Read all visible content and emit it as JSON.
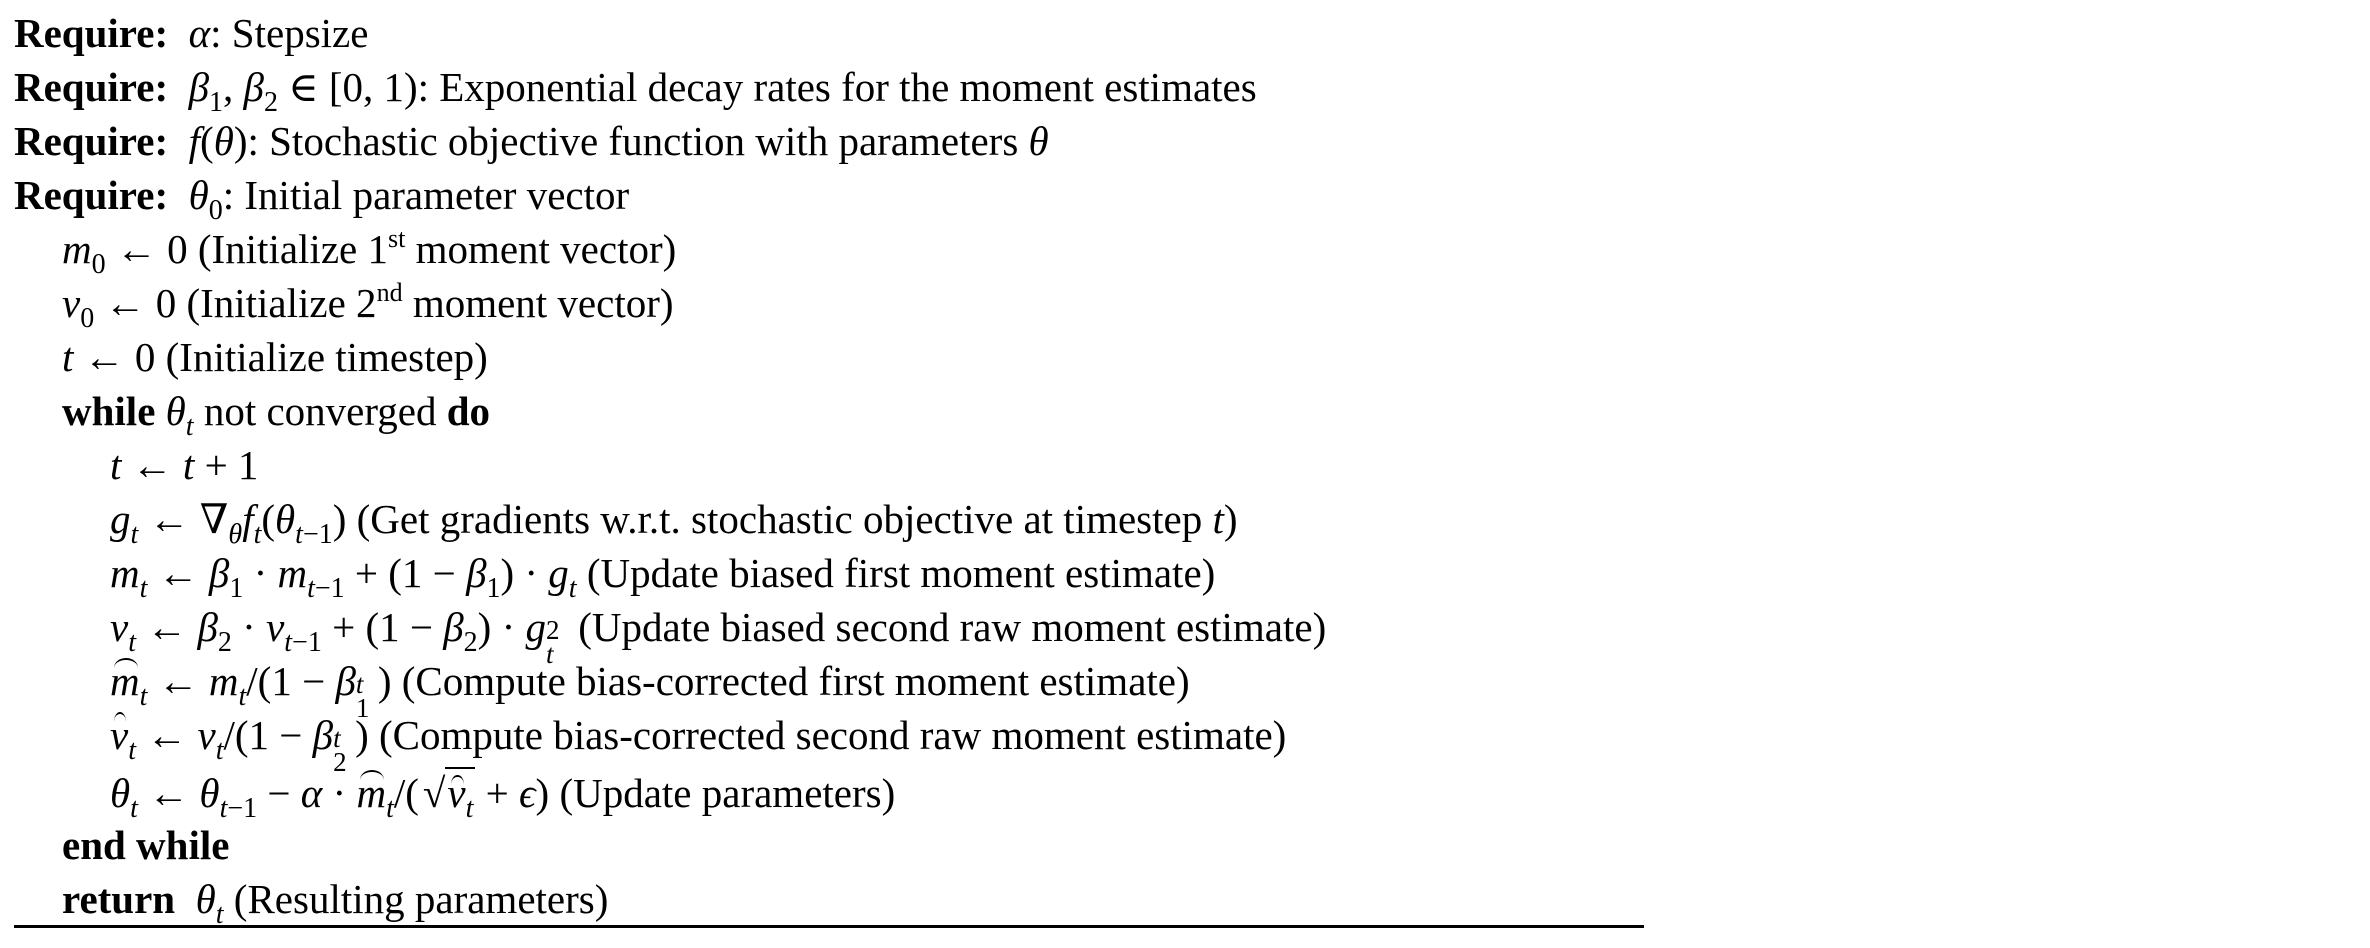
{
  "algorithm": {
    "require_keyword": "Require:",
    "while_keyword": "while",
    "do_keyword": "do",
    "end_while": "end while",
    "return_keyword": "return",
    "lines": {
      "r1": ": Stepsize",
      "r2": ": Exponential decay rates for the moment estimates",
      "r3": ": Stochastic objective function with parameters",
      "r4": ": Initial parameter vector",
      "l1": "(Initialize 1",
      "l1_sup": "st",
      "l1_end": "moment vector)",
      "l2": "(Initialize 2",
      "l2_sup": "nd",
      "l2_end": "moment vector)",
      "l3": "(Initialize timestep)",
      "w": "not converged",
      "g": "(Get gradients w.r.t. stochastic objective at timestep",
      "m": "(Update biased first moment estimate)",
      "v": "(Update biased second raw moment estimate)",
      "mh": "(Compute bias-corrected first moment estimate)",
      "vh": "(Compute bias-corrected second raw moment estimate)",
      "th": "(Update parameters)",
      "ret": "(Resulting parameters)"
    }
  }
}
